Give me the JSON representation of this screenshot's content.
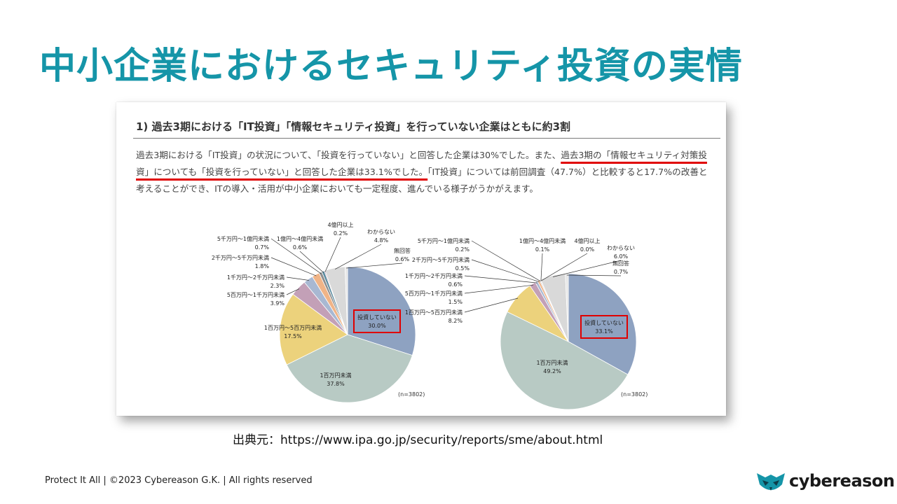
{
  "slide": {
    "title": "中小企業におけるセキュリティ投資の実情",
    "source": "出典元：https://www.ipa.go.jp/security/reports/sme/about.html",
    "footer": "Protect It All | ©2023 Cybereason G.K. | All rights reserved",
    "logo_text": "cybereason"
  },
  "figure": {
    "heading": "1) 過去3期における「IT投資」「情報セキュリティ投資」を行っていない企業はともに約3割",
    "body_1": "過去3期における「IT投資」の状況について、「投資を行っていない」と回答した企業は30%でした。また、",
    "body_2": "過去3期の「情報セキュリティ対策投資」についても「投資を行っていない」と回答した企業は33.1%でした。",
    "body_3": "「IT投資」については前回調査（47.7%）と比較すると17.7%の改善と考えることができ、ITの導入・活用が中小企業においても一定程度、進んでいる様子がうかがえます。"
  },
  "colors": {
    "title": "#1595a8",
    "highlight_red": "#e00000",
    "slice_palette": [
      "#8ea2c1",
      "#b8cac4",
      "#ecd27c",
      "#c3a0b7",
      "#a8b8d2",
      "#f0b487",
      "#8e8e8e",
      "#5b8ca0",
      "#97597e",
      "#d9d9d9",
      "#e6e6e6"
    ]
  },
  "chart_data": [
    {
      "type": "pie",
      "title": "",
      "n_label": "(n=3802)",
      "slices": [
        {
          "label": "投資していない",
          "value": 30.0,
          "display": "30.0%",
          "highlight": true
        },
        {
          "label": "1百万円未満",
          "value": 37.8,
          "display": "37.8%"
        },
        {
          "label": "1百万円～5百万円未満",
          "value": 17.5,
          "display": "17.5%"
        },
        {
          "label": "5百万円～1千万円未満",
          "value": 3.9,
          "display": "3.9%"
        },
        {
          "label": "1千万円～2千万円未満",
          "value": 2.3,
          "display": "2.3%"
        },
        {
          "label": "2千万円～5千万円未満",
          "value": 1.8,
          "display": "1.8%"
        },
        {
          "label": "5千万円～1億円未満",
          "value": 0.7,
          "display": "0.7%"
        },
        {
          "label": "1億円～4億円未満",
          "value": 0.6,
          "display": "0.6%"
        },
        {
          "label": "4億円以上",
          "value": 0.2,
          "display": "0.2%"
        },
        {
          "label": "わからない",
          "value": 4.8,
          "display": "4.8%"
        },
        {
          "label": "無回答",
          "value": 0.6,
          "display": "0.6%"
        }
      ]
    },
    {
      "type": "pie",
      "title": "",
      "n_label": "(n=3802)",
      "slices": [
        {
          "label": "投資していない",
          "value": 33.1,
          "display": "33.1%",
          "highlight": true
        },
        {
          "label": "1百万円未満",
          "value": 49.2,
          "display": "49.2%"
        },
        {
          "label": "1百万円～5百万円未満",
          "value": 8.2,
          "display": "8.2%"
        },
        {
          "label": "5百万円～1千万円未満",
          "value": 1.5,
          "display": "1.5%"
        },
        {
          "label": "1千万円～2千万円未満",
          "value": 0.6,
          "display": "0.6%"
        },
        {
          "label": "2千万円～5千万円未満",
          "value": 0.5,
          "display": "0.5%"
        },
        {
          "label": "5千万円～1億円未満",
          "value": 0.2,
          "display": "0.2%"
        },
        {
          "label": "1億円～4億円未満",
          "value": 0.1,
          "display": "0.1%"
        },
        {
          "label": "4億円以上",
          "value": 0.0,
          "display": "0.0%"
        },
        {
          "label": "わからない",
          "value": 6.0,
          "display": "6.0%"
        },
        {
          "label": "無回答",
          "value": 0.7,
          "display": "0.7%"
        }
      ]
    }
  ]
}
